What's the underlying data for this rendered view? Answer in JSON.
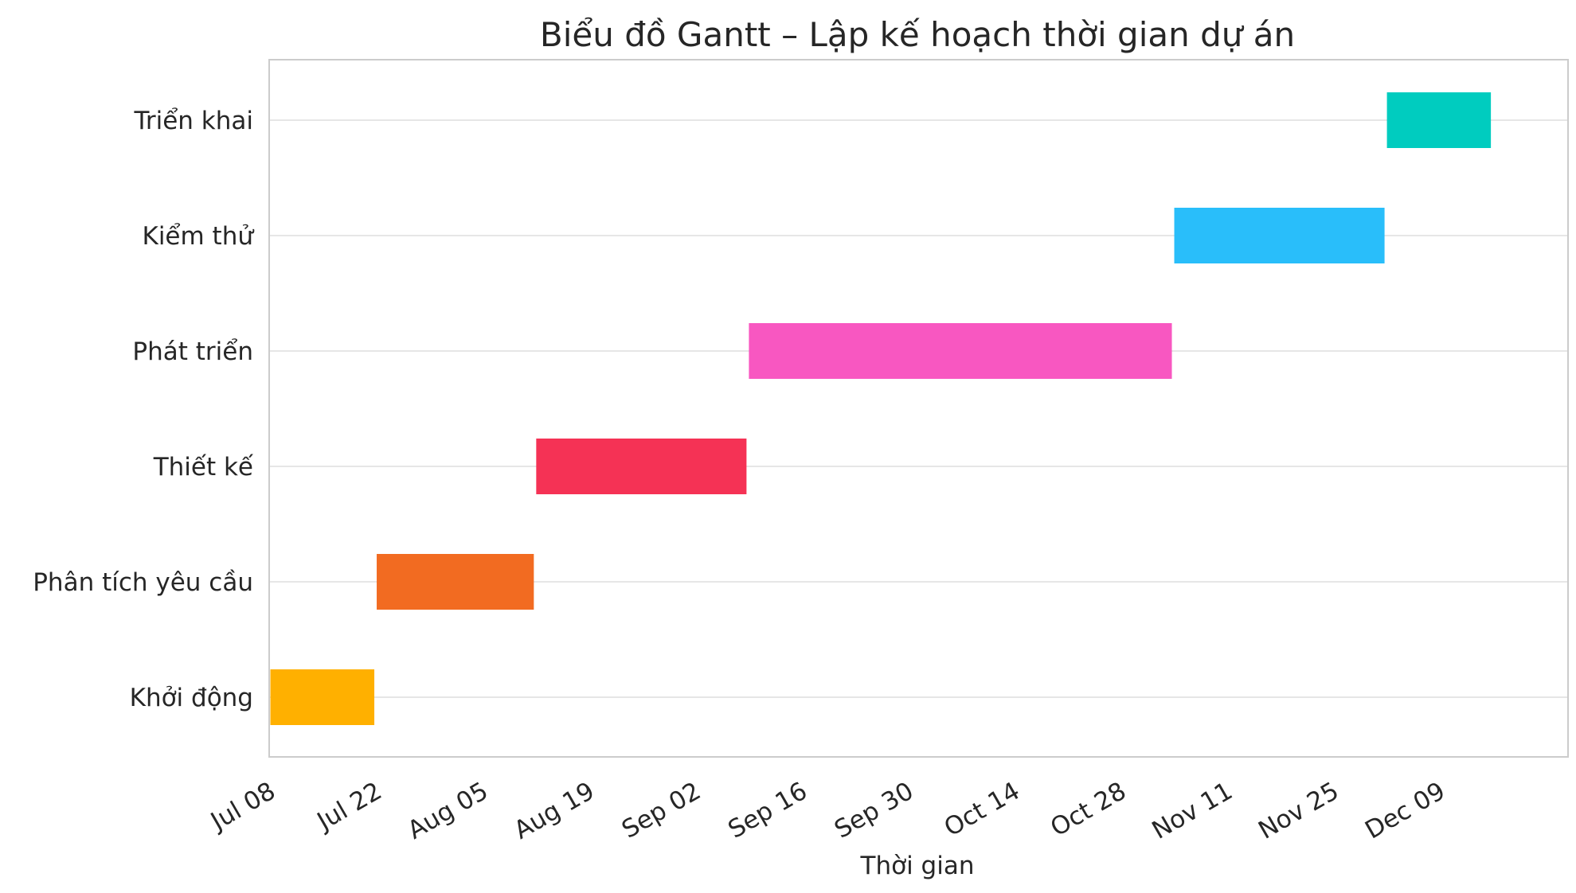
{
  "chart_data": {
    "type": "bar",
    "orientation": "horizontal-gantt",
    "title": "Biểu đồ Gantt – Lập kế hoạch thời gian dự án",
    "xlabel": "Thời gian",
    "ylabel": "",
    "xlim": [
      "2024-07-08",
      "2024-12-26"
    ],
    "grid": "horizontal",
    "x_ticks": [
      "Jul 08",
      "Jul 22",
      "Aug 05",
      "Aug 19",
      "Sep 02",
      "Sep 16",
      "Sep 30",
      "Oct 14",
      "Oct 28",
      "Nov 11",
      "Nov 25",
      "Dec 09"
    ],
    "x_tick_dates": [
      "2024-07-08",
      "2024-07-22",
      "2024-08-05",
      "2024-08-19",
      "2024-09-02",
      "2024-09-16",
      "2024-09-30",
      "2024-10-14",
      "2024-10-28",
      "2024-11-11",
      "2024-11-25",
      "2024-12-09"
    ],
    "tasks": [
      {
        "name": "Khởi động",
        "start": "2024-07-08",
        "end": "2024-07-22",
        "color": "#FFB000"
      },
      {
        "name": "Phân tích yêu cầu",
        "start": "2024-07-22",
        "end": "2024-08-12",
        "color": "#F26B21"
      },
      {
        "name": "Thiết kế",
        "start": "2024-08-12",
        "end": "2024-09-09",
        "color": "#F53255"
      },
      {
        "name": "Phát triển",
        "start": "2024-09-09",
        "end": "2024-11-04",
        "color": "#F857C1"
      },
      {
        "name": "Kiểm thử",
        "start": "2024-11-04",
        "end": "2024-12-02",
        "color": "#29BEFA"
      },
      {
        "name": "Triển khai",
        "start": "2024-12-02",
        "end": "2024-12-16",
        "color": "#00CCBF"
      }
    ]
  }
}
